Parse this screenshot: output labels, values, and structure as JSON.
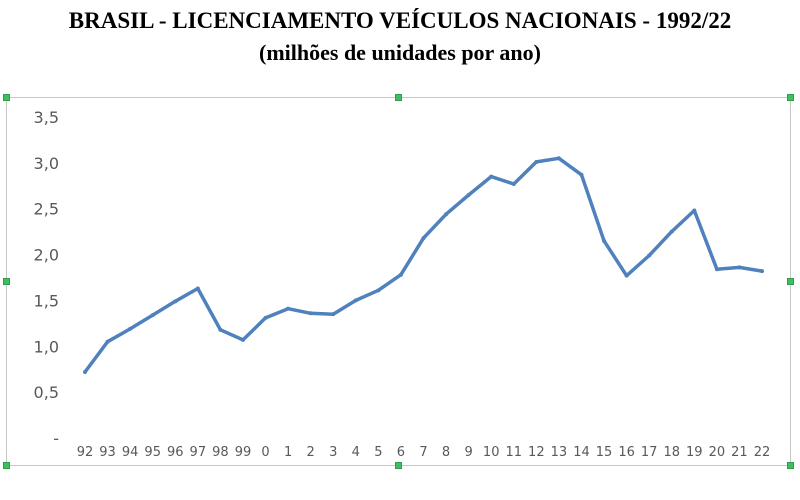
{
  "title": "BRASIL - LICENCIAMENTO VEÍCULOS NACIONAIS - 1992/22",
  "subtitle": "(milhões de unidades por ano)",
  "colors": {
    "line": "#4f81bd",
    "handle": "#3fbf5f"
  },
  "chart_data": {
    "type": "line",
    "title": "BRASIL - LICENCIAMENTO VEÍCULOS NACIONAIS - 1992/22",
    "subtitle": "(milhões de unidades por ano)",
    "xlabel": "",
    "ylabel": "",
    "ylim": [
      0,
      3.5
    ],
    "grid": false,
    "legend": "none",
    "y_ticks": [
      "-",
      "0,5",
      "1,0",
      "1,5",
      "2,0",
      "2,5",
      "3,0",
      "3,5"
    ],
    "categories": [
      "92",
      "93",
      "94",
      "95",
      "96",
      "97",
      "98",
      "99",
      "0",
      "1",
      "2",
      "3",
      "4",
      "5",
      "6",
      "7",
      "8",
      "9",
      "10",
      "11",
      "12",
      "13",
      "14",
      "15",
      "16",
      "17",
      "18",
      "19",
      "20",
      "21",
      "22"
    ],
    "series": [
      {
        "values": [
          0.72,
          1.05,
          1.19,
          1.34,
          1.49,
          1.63,
          1.18,
          1.07,
          1.31,
          1.41,
          1.36,
          1.35,
          1.5,
          1.61,
          1.78,
          2.18,
          2.44,
          2.65,
          2.85,
          2.77,
          3.01,
          3.05,
          2.87,
          2.15,
          1.77,
          1.99,
          2.25,
          2.48,
          1.84,
          1.86,
          1.82
        ]
      }
    ]
  }
}
